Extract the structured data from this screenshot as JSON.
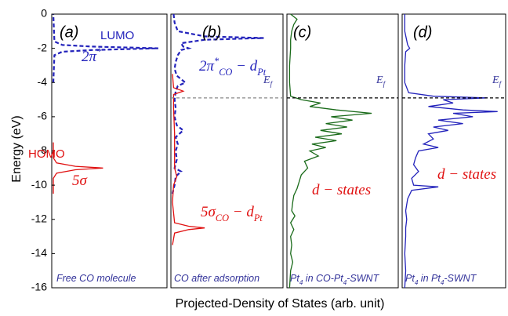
{
  "figure": {
    "ylabel": "Energy (eV)",
    "xlabel": "Projected-Density of States (arb. unit)"
  },
  "chart_data": [
    {
      "type": "line",
      "label": "(a)",
      "ylim": [
        -16,
        0
      ],
      "yticks": [
        0,
        -2,
        -4,
        -6,
        -8,
        -10,
        -12,
        -14,
        -16
      ],
      "xlim": [
        0,
        1
      ],
      "caption": [
        {
          "t": "Free CO molecule",
          "s": ""
        }
      ],
      "series": [
        {
          "color": "#2222bb",
          "dash": true,
          "x": [
            0,
            0.01,
            0.08,
            0.35,
            0.95,
            0.35,
            0.08,
            0.01,
            0
          ],
          "values": [
            -4,
            -2.4,
            -2.2,
            -2.1,
            -2.0,
            -1.9,
            -1.8,
            -1.6,
            0
          ]
        },
        {
          "color": "#e01010",
          "dash": false,
          "x": [
            0,
            0,
            0.03,
            0.2,
            0.45,
            0.2,
            0.03,
            0,
            0
          ],
          "values": [
            -10.5,
            -9.6,
            -9.3,
            -9.1,
            -9.0,
            -8.9,
            -8.7,
            -8.4,
            -7.5
          ]
        }
      ],
      "annotations": [
        {
          "color": "#2222bb",
          "style": "sans",
          "parts": [
            {
              "t": "LUMO",
              "s": ""
            }
          ]
        },
        {
          "color": "#2222bb",
          "style": "serif",
          "parts": [
            {
              "t": "2π",
              "s": ""
            },
            {
              "t": "*",
              "s": "sup"
            }
          ]
        },
        {
          "color": "#e01010",
          "style": "sans",
          "parts": [
            {
              "t": "HOMO",
              "s": ""
            }
          ]
        },
        {
          "color": "#e01010",
          "style": "serif",
          "parts": [
            {
              "t": "5σ",
              "s": ""
            }
          ]
        }
      ]
    },
    {
      "type": "line",
      "label": "(b)",
      "ylim": [
        -16,
        0
      ],
      "xlim": [
        0,
        1
      ],
      "fermi_level": -4.9,
      "fermi_color": "#888888",
      "fermi_label": [
        {
          "t": "E",
          "s": ""
        },
        {
          "t": "f",
          "s": "sub"
        }
      ],
      "caption": [
        {
          "t": "CO after adsorption",
          "s": ""
        }
      ],
      "series": [
        {
          "color": "#2222bb",
          "dash": true,
          "x": [
            0.01,
            0.02,
            0.05,
            0.3,
            0.85,
            0.3,
            0.08,
            0.1,
            0.15,
            0.08,
            0.05,
            0.03,
            0.02,
            0.04,
            0.12,
            0.05,
            0.03,
            0.02,
            0.03,
            0.02,
            0.04,
            0.1,
            0.03,
            0.05,
            0.03,
            0.04,
            0.02,
            0.08,
            0.03,
            0.02,
            0
          ],
          "values": [
            0,
            -0.5,
            -1.0,
            -1.3,
            -1.4,
            -1.5,
            -1.7,
            -1.9,
            -2.0,
            -2.1,
            -2.4,
            -2.8,
            -3.2,
            -3.6,
            -4.0,
            -4.2,
            -4.5,
            -5,
            -5.5,
            -6,
            -6.5,
            -6.8,
            -7.2,
            -7.6,
            -8,
            -8.5,
            -9,
            -9.2,
            -9.5,
            -10,
            -10.5
          ]
        },
        {
          "color": "#e01010",
          "dash": false,
          "x": [
            0,
            0.01,
            0.1,
            0.01,
            0.01,
            0.02,
            0.02,
            0.02,
            0.04,
            0.01,
            0,
            0.02,
            0.15,
            0.3,
            0.15,
            0.02,
            0
          ],
          "values": [
            -3.5,
            -4.3,
            -4.5,
            -4.7,
            -5.5,
            -7,
            -8,
            -9,
            -9.5,
            -10,
            -11,
            -12.2,
            -12.4,
            -12.5,
            -12.6,
            -12.8,
            -13.5
          ]
        }
      ],
      "annotations": [
        {
          "color": "#2222bb",
          "style": "serif",
          "parts": [
            {
              "t": "2π",
              "s": ""
            },
            {
              "t": "*",
              "s": "sup"
            },
            {
              "t": "CO",
              "s": "sub"
            },
            {
              "t": " − d",
              "s": ""
            },
            {
              "t": "Pt",
              "s": "sub"
            }
          ]
        },
        {
          "color": "#e01010",
          "style": "serif",
          "parts": [
            {
              "t": "5σ",
              "s": ""
            },
            {
              "t": "CO",
              "s": "sub"
            },
            {
              "t": " − d",
              "s": ""
            },
            {
              "t": "Pt",
              "s": "sub"
            }
          ]
        }
      ]
    },
    {
      "type": "line",
      "label": "(c)",
      "ylim": [
        -16,
        0
      ],
      "xlim": [
        0,
        1
      ],
      "fermi_level": -4.9,
      "fermi_color": "#000000",
      "fermi_label": [
        {
          "t": "E",
          "s": ""
        },
        {
          "t": "f",
          "s": "sub"
        }
      ],
      "caption": [
        {
          "t": "Pt",
          "s": ""
        },
        {
          "t": "4",
          "s": "sub"
        },
        {
          "t": " in CO-Pt",
          "s": ""
        },
        {
          "t": "4",
          "s": "sub"
        },
        {
          "t": "-SWNT",
          "s": ""
        }
      ],
      "series": [
        {
          "color": "#1a6b1a",
          "dash": false,
          "x": [
            0.02,
            0.08,
            0.05,
            0.03,
            0.02,
            0.02,
            0.01,
            0.01,
            0.02,
            0.12,
            0.3,
            0.2,
            0.45,
            0.78,
            0.4,
            0.6,
            0.35,
            0.55,
            0.3,
            0.5,
            0.25,
            0.45,
            0.22,
            0.35,
            0.2,
            0.28,
            0.15,
            0.18,
            0.12,
            0.1,
            0.08,
            0.05,
            0.04,
            0.03,
            0.06,
            0.02,
            0.05,
            0.02,
            0.03,
            0.02,
            0.04,
            0.02,
            0.01
          ],
          "values": [
            0,
            -0.3,
            -0.6,
            -1,
            -1.5,
            -2,
            -3,
            -4,
            -4.8,
            -5.0,
            -5.2,
            -5.4,
            -5.6,
            -5.8,
            -6.0,
            -6.2,
            -6.4,
            -6.6,
            -6.8,
            -7.0,
            -7.2,
            -7.4,
            -7.6,
            -7.8,
            -8.0,
            -8.3,
            -8.6,
            -9.0,
            -9.4,
            -9.8,
            -10.2,
            -10.6,
            -11.0,
            -11.5,
            -11.8,
            -12.2,
            -12.6,
            -13,
            -13.5,
            -14,
            -14.5,
            -15,
            -16
          ]
        }
      ],
      "annotations": [
        {
          "color": "#e01010",
          "style": "serif",
          "parts": [
            {
              "t": "d − states",
              "s": ""
            }
          ]
        }
      ]
    },
    {
      "type": "line",
      "label": "(d)",
      "ylim": [
        -16,
        0
      ],
      "xlim": [
        0,
        1
      ],
      "fermi_level": -4.9,
      "fermi_color": "#000000",
      "fermi_label": [
        {
          "t": "E",
          "s": ""
        },
        {
          "t": "f",
          "s": "sub"
        }
      ],
      "caption": [
        {
          "t": "Pt",
          "s": ""
        },
        {
          "t": "4",
          "s": "sub"
        },
        {
          "t": " in Pt",
          "s": ""
        },
        {
          "t": "4",
          "s": "sub"
        },
        {
          "t": "-SWNT",
          "s": ""
        }
      ],
      "series": [
        {
          "color": "#2222bb",
          "dash": false,
          "x": [
            0.01,
            0.01,
            0.04,
            0.06,
            0.02,
            0.01,
            0.01,
            0.05,
            0.3,
            0.85,
            0.4,
            0.5,
            0.25,
            0.6,
            0.95,
            0.5,
            0.7,
            0.35,
            0.6,
            0.3,
            0.45,
            0.25,
            0.3,
            0.2,
            0.35,
            0.15,
            0.12,
            0.1,
            0.15,
            0.08,
            0.1,
            0.35,
            0.08,
            0.04,
            0.02,
            0.03,
            0.02,
            0.02,
            0.01,
            0.02,
            0.01
          ],
          "values": [
            0,
            -1,
            -1.8,
            -2,
            -2.2,
            -3,
            -4,
            -4.6,
            -4.8,
            -4.9,
            -5.0,
            -5.2,
            -5.4,
            -5.6,
            -5.7,
            -5.8,
            -6.0,
            -6.2,
            -6.4,
            -6.6,
            -6.8,
            -7.0,
            -7.3,
            -7.6,
            -7.8,
            -8.0,
            -8.4,
            -8.8,
            -9.2,
            -9.6,
            -10.0,
            -10.1,
            -10.3,
            -10.8,
            -11.5,
            -12,
            -12.5,
            -13,
            -14,
            -15,
            -16
          ]
        }
      ],
      "annotations": [
        {
          "color": "#e01010",
          "style": "serif",
          "parts": [
            {
              "t": "d − states",
              "s": ""
            }
          ]
        }
      ]
    }
  ]
}
